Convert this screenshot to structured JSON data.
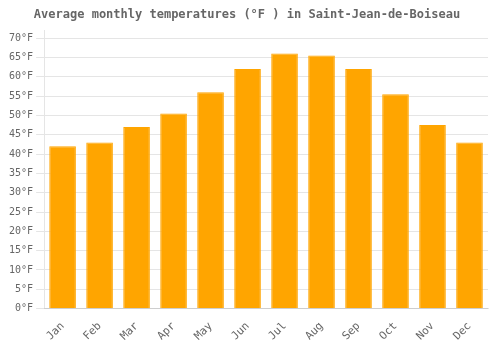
{
  "chart_data": {
    "type": "bar",
    "title": "Average monthly temperatures (°F ) in Saint-Jean-de-Boiseau",
    "categories": [
      "Jan",
      "Feb",
      "Mar",
      "Apr",
      "May",
      "Jun",
      "Jul",
      "Aug",
      "Sep",
      "Oct",
      "Nov",
      "Dec"
    ],
    "values": [
      42,
      43,
      47,
      50.5,
      56,
      62,
      66,
      65.5,
      62,
      55.5,
      47.5,
      43
    ],
    "color": "#FFA500",
    "ylim": [
      0,
      72
    ],
    "yticks": [
      {
        "value": 0,
        "label": "0°F"
      },
      {
        "value": 5,
        "label": "5°F"
      },
      {
        "value": 10,
        "label": "10°F"
      },
      {
        "value": 15,
        "label": "15°F"
      },
      {
        "value": 20,
        "label": "20°F"
      },
      {
        "value": 25,
        "label": "25°F"
      },
      {
        "value": 30,
        "label": "30°F"
      },
      {
        "value": 35,
        "label": "35°F"
      },
      {
        "value": 40,
        "label": "40°F"
      },
      {
        "value": 45,
        "label": "45°F"
      },
      {
        "value": 50,
        "label": "50°F"
      },
      {
        "value": 55,
        "label": "55°F"
      },
      {
        "value": 60,
        "label": "60°F"
      },
      {
        "value": 65,
        "label": "65°F"
      },
      {
        "value": 70,
        "label": "70°F"
      }
    ],
    "grid": true
  }
}
